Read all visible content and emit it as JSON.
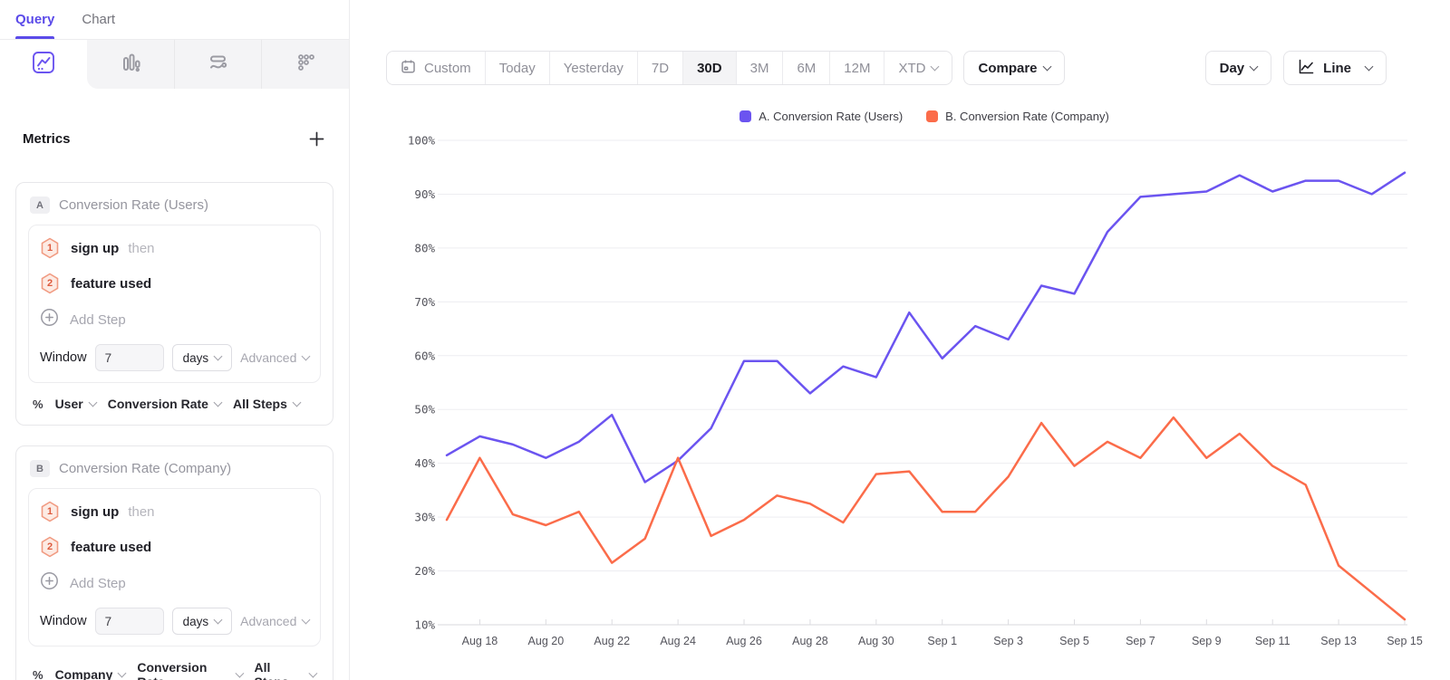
{
  "colors": {
    "accent": "#5B4BE9",
    "series_a": "#6B54F0",
    "series_b": "#FB6C4A"
  },
  "sidebar": {
    "tabs": [
      {
        "label": "Query"
      },
      {
        "label": "Chart"
      }
    ],
    "metrics_header": {
      "title": "Metrics"
    },
    "metrics": [
      {
        "badge": "A",
        "name": "Conversion Rate (Users)",
        "steps": [
          {
            "num": "1",
            "label": "sign up",
            "suffix": "then"
          },
          {
            "num": "2",
            "label": "feature used",
            "suffix": ""
          }
        ],
        "add_step_label": "Add Step",
        "window": {
          "label": "Window",
          "value": "7",
          "unit": "days",
          "advanced_label": "Advanced"
        },
        "measure": {
          "prefix": "%",
          "entity": "User",
          "metric": "Conversion Rate",
          "steps": "All Steps"
        }
      },
      {
        "badge": "B",
        "name": "Conversion Rate (Company)",
        "steps": [
          {
            "num": "1",
            "label": "sign up",
            "suffix": "then"
          },
          {
            "num": "2",
            "label": "feature used",
            "suffix": ""
          }
        ],
        "add_step_label": "Add Step",
        "window": {
          "label": "Window",
          "value": "7",
          "unit": "days",
          "advanced_label": "Advanced"
        },
        "measure": {
          "prefix": "%",
          "entity": "Company",
          "metric": "Conversion Rate",
          "steps": "All Steps"
        }
      }
    ]
  },
  "toolbar": {
    "date_ranges": [
      {
        "label": "Custom"
      },
      {
        "label": "Today"
      },
      {
        "label": "Yesterday"
      },
      {
        "label": "7D"
      },
      {
        "label": "30D"
      },
      {
        "label": "3M"
      },
      {
        "label": "6M"
      },
      {
        "label": "12M"
      },
      {
        "label": "XTD"
      }
    ],
    "selected_range": "30D",
    "compare_label": "Compare",
    "granularity_label": "Day",
    "chart_type_label": "Line"
  },
  "chart_data": {
    "type": "line",
    "x": [
      "Aug 17",
      "Aug 18",
      "Aug 19",
      "Aug 20",
      "Aug 21",
      "Aug 22",
      "Aug 23",
      "Aug 24",
      "Aug 25",
      "Aug 26",
      "Aug 27",
      "Aug 28",
      "Aug 29",
      "Aug 30",
      "Aug 31",
      "Sep 1",
      "Sep 2",
      "Sep 3",
      "Sep 4",
      "Sep 5",
      "Sep 6",
      "Sep 7",
      "Sep 8",
      "Sep 9",
      "Sep 10",
      "Sep 11",
      "Sep 12",
      "Sep 13",
      "Sep 14",
      "Sep 15"
    ],
    "series": [
      {
        "name": "A. Conversion Rate (Users)",
        "color": "#6B54F0",
        "values": [
          41.5,
          45,
          43.5,
          41,
          44,
          49,
          36.5,
          40.5,
          46.5,
          59,
          59,
          53,
          58,
          56,
          68,
          59.5,
          65.5,
          63,
          73,
          71.5,
          83,
          89.5,
          90,
          90.5,
          93.5,
          90.5,
          92.5,
          92.5,
          90,
          94
        ]
      },
      {
        "name": "B. Conversion Rate (Company)",
        "color": "#FB6C4A",
        "values": [
          29.5,
          41,
          30.5,
          28.5,
          31,
          21.5,
          26,
          41,
          26.5,
          29.5,
          34,
          32.5,
          29,
          38,
          38.5,
          31,
          31,
          37.5,
          47.5,
          39.5,
          44,
          41,
          48.5,
          41,
          45.5,
          39.5,
          36,
          21,
          16,
          11
        ]
      }
    ],
    "ylim": [
      10,
      100
    ],
    "y_tick_step": 10,
    "y_tick_format": "percent",
    "x_tick_every": 2,
    "grid": "horizontal",
    "legend_position": "top-center"
  }
}
